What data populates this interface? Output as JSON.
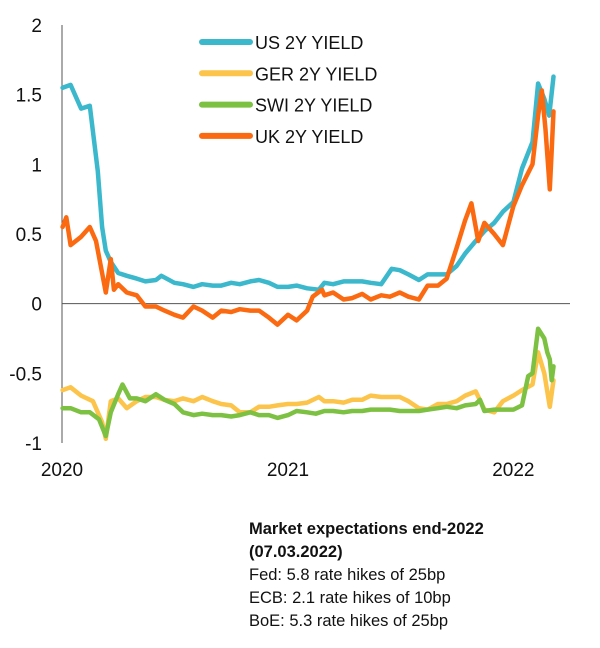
{
  "chart_data": {
    "type": "line",
    "title": "",
    "xlabel": "",
    "ylabel": "",
    "ylim": [
      -1,
      2
    ],
    "xlim": [
      "2020-01-01",
      "2022-04-15"
    ],
    "yticks": [
      "2",
      "1.5",
      "1",
      "0.5",
      "0",
      "-0.5",
      "-1"
    ],
    "ytick_values": [
      2,
      1.5,
      1,
      0.5,
      0,
      -0.5,
      -1
    ],
    "xticks": [
      "2020",
      "2021",
      "2022"
    ],
    "xtick_values": [
      "2020-01-01",
      "2021-01-01",
      "2022-01-01"
    ],
    "grid": false,
    "legend": "top-center",
    "series": [
      {
        "name": "US 2Y YIELD",
        "color": "#3bb8cc",
        "points": [
          [
            "2020-01-02",
            1.55
          ],
          [
            "2020-01-15",
            1.57
          ],
          [
            "2020-02-01",
            1.4
          ],
          [
            "2020-02-15",
            1.42
          ],
          [
            "2020-02-28",
            0.95
          ],
          [
            "2020-03-06",
            0.55
          ],
          [
            "2020-03-12",
            0.38
          ],
          [
            "2020-03-20",
            0.3
          ],
          [
            "2020-04-01",
            0.22
          ],
          [
            "2020-04-15",
            0.2
          ],
          [
            "2020-05-01",
            0.18
          ],
          [
            "2020-05-15",
            0.16
          ],
          [
            "2020-06-01",
            0.17
          ],
          [
            "2020-06-10",
            0.2
          ],
          [
            "2020-07-01",
            0.15
          ],
          [
            "2020-07-15",
            0.14
          ],
          [
            "2020-08-01",
            0.12
          ],
          [
            "2020-08-15",
            0.14
          ],
          [
            "2020-09-01",
            0.13
          ],
          [
            "2020-09-15",
            0.13
          ],
          [
            "2020-10-01",
            0.15
          ],
          [
            "2020-10-15",
            0.14
          ],
          [
            "2020-11-01",
            0.16
          ],
          [
            "2020-11-15",
            0.17
          ],
          [
            "2020-12-01",
            0.15
          ],
          [
            "2020-12-15",
            0.12
          ],
          [
            "2021-01-01",
            0.12
          ],
          [
            "2021-01-15",
            0.13
          ],
          [
            "2021-02-01",
            0.11
          ],
          [
            "2021-02-20",
            0.1
          ],
          [
            "2021-03-01",
            0.15
          ],
          [
            "2021-03-15",
            0.14
          ],
          [
            "2021-04-01",
            0.16
          ],
          [
            "2021-04-15",
            0.16
          ],
          [
            "2021-05-01",
            0.16
          ],
          [
            "2021-05-15",
            0.15
          ],
          [
            "2021-06-01",
            0.14
          ],
          [
            "2021-06-18",
            0.25
          ],
          [
            "2021-07-01",
            0.24
          ],
          [
            "2021-07-15",
            0.21
          ],
          [
            "2021-08-01",
            0.17
          ],
          [
            "2021-08-15",
            0.21
          ],
          [
            "2021-09-01",
            0.21
          ],
          [
            "2021-09-15",
            0.21
          ],
          [
            "2021-10-01",
            0.27
          ],
          [
            "2021-10-15",
            0.36
          ],
          [
            "2021-11-01",
            0.45
          ],
          [
            "2021-11-15",
            0.52
          ],
          [
            "2021-12-01",
            0.58
          ],
          [
            "2021-12-15",
            0.66
          ],
          [
            "2022-01-01",
            0.73
          ],
          [
            "2022-01-15",
            0.97
          ],
          [
            "2022-02-01",
            1.16
          ],
          [
            "2022-02-10",
            1.58
          ],
          [
            "2022-02-20",
            1.47
          ],
          [
            "2022-02-28",
            1.35
          ],
          [
            "2022-03-07",
            1.63
          ]
        ]
      },
      {
        "name": "GER 2Y YIELD",
        "color": "#fcc44a",
        "points": [
          [
            "2020-01-02",
            -0.62
          ],
          [
            "2020-01-15",
            -0.6
          ],
          [
            "2020-02-01",
            -0.66
          ],
          [
            "2020-02-20",
            -0.7
          ],
          [
            "2020-03-06",
            -0.85
          ],
          [
            "2020-03-12",
            -0.97
          ],
          [
            "2020-03-20",
            -0.7
          ],
          [
            "2020-04-01",
            -0.68
          ],
          [
            "2020-04-15",
            -0.75
          ],
          [
            "2020-05-01",
            -0.7
          ],
          [
            "2020-05-15",
            -0.67
          ],
          [
            "2020-06-01",
            -0.67
          ],
          [
            "2020-06-15",
            -0.69
          ],
          [
            "2020-07-01",
            -0.7
          ],
          [
            "2020-07-15",
            -0.68
          ],
          [
            "2020-08-01",
            -0.7
          ],
          [
            "2020-08-15",
            -0.67
          ],
          [
            "2020-09-01",
            -0.7
          ],
          [
            "2020-09-15",
            -0.72
          ],
          [
            "2020-10-01",
            -0.73
          ],
          [
            "2020-10-15",
            -0.78
          ],
          [
            "2020-11-01",
            -0.78
          ],
          [
            "2020-11-15",
            -0.74
          ],
          [
            "2020-12-01",
            -0.74
          ],
          [
            "2020-12-15",
            -0.73
          ],
          [
            "2021-01-01",
            -0.72
          ],
          [
            "2021-01-15",
            -0.72
          ],
          [
            "2021-02-01",
            -0.71
          ],
          [
            "2021-02-20",
            -0.67
          ],
          [
            "2021-03-01",
            -0.7
          ],
          [
            "2021-03-15",
            -0.7
          ],
          [
            "2021-04-01",
            -0.71
          ],
          [
            "2021-04-15",
            -0.69
          ],
          [
            "2021-05-01",
            -0.69
          ],
          [
            "2021-05-15",
            -0.66
          ],
          [
            "2021-06-01",
            -0.67
          ],
          [
            "2021-06-15",
            -0.67
          ],
          [
            "2021-07-01",
            -0.67
          ],
          [
            "2021-07-15",
            -0.7
          ],
          [
            "2021-08-01",
            -0.75
          ],
          [
            "2021-08-15",
            -0.76
          ],
          [
            "2021-09-01",
            -0.72
          ],
          [
            "2021-09-15",
            -0.72
          ],
          [
            "2021-10-01",
            -0.7
          ],
          [
            "2021-10-15",
            -0.66
          ],
          [
            "2021-11-01",
            -0.63
          ],
          [
            "2021-11-15",
            -0.76
          ],
          [
            "2021-12-01",
            -0.78
          ],
          [
            "2021-12-15",
            -0.7
          ],
          [
            "2022-01-01",
            -0.66
          ],
          [
            "2022-01-15",
            -0.62
          ],
          [
            "2022-02-01",
            -0.58
          ],
          [
            "2022-02-10",
            -0.35
          ],
          [
            "2022-02-20",
            -0.5
          ],
          [
            "2022-03-01",
            -0.74
          ],
          [
            "2022-03-07",
            -0.55
          ]
        ]
      },
      {
        "name": "SWI 2Y YIELD",
        "color": "#7dc142",
        "points": [
          [
            "2020-01-02",
            -0.75
          ],
          [
            "2020-01-15",
            -0.75
          ],
          [
            "2020-02-01",
            -0.78
          ],
          [
            "2020-02-15",
            -0.78
          ],
          [
            "2020-03-01",
            -0.83
          ],
          [
            "2020-03-12",
            -0.95
          ],
          [
            "2020-03-20",
            -0.78
          ],
          [
            "2020-04-01",
            -0.65
          ],
          [
            "2020-04-08",
            -0.58
          ],
          [
            "2020-04-20",
            -0.68
          ],
          [
            "2020-05-01",
            -0.68
          ],
          [
            "2020-05-15",
            -0.7
          ],
          [
            "2020-06-01",
            -0.65
          ],
          [
            "2020-06-15",
            -0.69
          ],
          [
            "2020-07-01",
            -0.72
          ],
          [
            "2020-07-15",
            -0.78
          ],
          [
            "2020-08-01",
            -0.8
          ],
          [
            "2020-08-15",
            -0.79
          ],
          [
            "2020-09-01",
            -0.8
          ],
          [
            "2020-09-15",
            -0.8
          ],
          [
            "2020-10-01",
            -0.81
          ],
          [
            "2020-10-15",
            -0.8
          ],
          [
            "2020-11-01",
            -0.78
          ],
          [
            "2020-11-15",
            -0.8
          ],
          [
            "2020-12-01",
            -0.8
          ],
          [
            "2020-12-15",
            -0.82
          ],
          [
            "2021-01-01",
            -0.8
          ],
          [
            "2021-01-15",
            -0.77
          ],
          [
            "2021-02-01",
            -0.78
          ],
          [
            "2021-02-15",
            -0.79
          ],
          [
            "2021-03-01",
            -0.77
          ],
          [
            "2021-03-15",
            -0.77
          ],
          [
            "2021-04-01",
            -0.78
          ],
          [
            "2021-04-15",
            -0.77
          ],
          [
            "2021-05-01",
            -0.77
          ],
          [
            "2021-05-15",
            -0.76
          ],
          [
            "2021-06-01",
            -0.76
          ],
          [
            "2021-06-15",
            -0.76
          ],
          [
            "2021-07-01",
            -0.77
          ],
          [
            "2021-07-15",
            -0.77
          ],
          [
            "2021-08-01",
            -0.77
          ],
          [
            "2021-08-15",
            -0.76
          ],
          [
            "2021-09-01",
            -0.75
          ],
          [
            "2021-09-15",
            -0.74
          ],
          [
            "2021-10-01",
            -0.75
          ],
          [
            "2021-10-15",
            -0.73
          ],
          [
            "2021-11-01",
            -0.72
          ],
          [
            "2021-11-08",
            -0.69
          ],
          [
            "2021-11-15",
            -0.77
          ],
          [
            "2021-12-01",
            -0.76
          ],
          [
            "2021-12-15",
            -0.76
          ],
          [
            "2022-01-01",
            -0.76
          ],
          [
            "2022-01-15",
            -0.73
          ],
          [
            "2022-01-25",
            -0.52
          ],
          [
            "2022-02-01",
            -0.5
          ],
          [
            "2022-02-10",
            -0.18
          ],
          [
            "2022-02-20",
            -0.25
          ],
          [
            "2022-02-25",
            -0.35
          ],
          [
            "2022-03-01",
            -0.4
          ],
          [
            "2022-03-04",
            -0.55
          ],
          [
            "2022-03-07",
            -0.45
          ]
        ]
      },
      {
        "name": "UK 2Y YIELD",
        "color": "#fb6a10",
        "points": [
          [
            "2020-01-02",
            0.55
          ],
          [
            "2020-01-08",
            0.62
          ],
          [
            "2020-01-15",
            0.42
          ],
          [
            "2020-02-01",
            0.48
          ],
          [
            "2020-02-15",
            0.55
          ],
          [
            "2020-02-25",
            0.45
          ],
          [
            "2020-03-06",
            0.22
          ],
          [
            "2020-03-12",
            0.08
          ],
          [
            "2020-03-20",
            0.32
          ],
          [
            "2020-03-25",
            0.1
          ],
          [
            "2020-04-01",
            0.14
          ],
          [
            "2020-04-15",
            0.08
          ],
          [
            "2020-05-01",
            0.06
          ],
          [
            "2020-05-15",
            -0.02
          ],
          [
            "2020-06-01",
            -0.02
          ],
          [
            "2020-06-15",
            -0.05
          ],
          [
            "2020-07-01",
            -0.08
          ],
          [
            "2020-07-15",
            -0.1
          ],
          [
            "2020-08-01",
            -0.02
          ],
          [
            "2020-08-15",
            -0.05
          ],
          [
            "2020-09-01",
            -0.1
          ],
          [
            "2020-09-15",
            -0.05
          ],
          [
            "2020-10-01",
            -0.06
          ],
          [
            "2020-10-15",
            -0.04
          ],
          [
            "2020-11-01",
            -0.05
          ],
          [
            "2020-11-15",
            -0.05
          ],
          [
            "2020-12-01",
            -0.1
          ],
          [
            "2020-12-15",
            -0.15
          ],
          [
            "2021-01-01",
            -0.08
          ],
          [
            "2021-01-15",
            -0.12
          ],
          [
            "2021-02-01",
            -0.05
          ],
          [
            "2021-02-10",
            0.05
          ],
          [
            "2021-02-25",
            0.1
          ],
          [
            "2021-03-01",
            0.06
          ],
          [
            "2021-03-15",
            0.08
          ],
          [
            "2021-04-01",
            0.03
          ],
          [
            "2021-04-15",
            0.04
          ],
          [
            "2021-05-01",
            0.07
          ],
          [
            "2021-05-15",
            0.03
          ],
          [
            "2021-06-01",
            0.06
          ],
          [
            "2021-06-15",
            0.05
          ],
          [
            "2021-07-01",
            0.08
          ],
          [
            "2021-07-15",
            0.05
          ],
          [
            "2021-08-01",
            0.03
          ],
          [
            "2021-08-15",
            0.13
          ],
          [
            "2021-09-01",
            0.13
          ],
          [
            "2021-09-15",
            0.18
          ],
          [
            "2021-10-01",
            0.4
          ],
          [
            "2021-10-15",
            0.6
          ],
          [
            "2021-10-25",
            0.72
          ],
          [
            "2021-11-01",
            0.55
          ],
          [
            "2021-11-05",
            0.45
          ],
          [
            "2021-11-15",
            0.58
          ],
          [
            "2021-12-01",
            0.5
          ],
          [
            "2021-12-15",
            0.42
          ],
          [
            "2022-01-01",
            0.7
          ],
          [
            "2022-01-15",
            0.85
          ],
          [
            "2022-02-01",
            1.0
          ],
          [
            "2022-02-10",
            1.35
          ],
          [
            "2022-02-16",
            1.53
          ],
          [
            "2022-02-22",
            1.25
          ],
          [
            "2022-03-01",
            0.82
          ],
          [
            "2022-03-04",
            1.1
          ],
          [
            "2022-03-07",
            1.38
          ]
        ]
      }
    ]
  },
  "note": {
    "title": "Market expectations end-2022",
    "date": "(07.03.2022)",
    "lines": [
      "Fed: 5.8 rate hikes of 25bp",
      "ECB: 2.1 rate hikes of 10bp",
      "BoE: 5.3 rate hikes of 25bp"
    ]
  }
}
